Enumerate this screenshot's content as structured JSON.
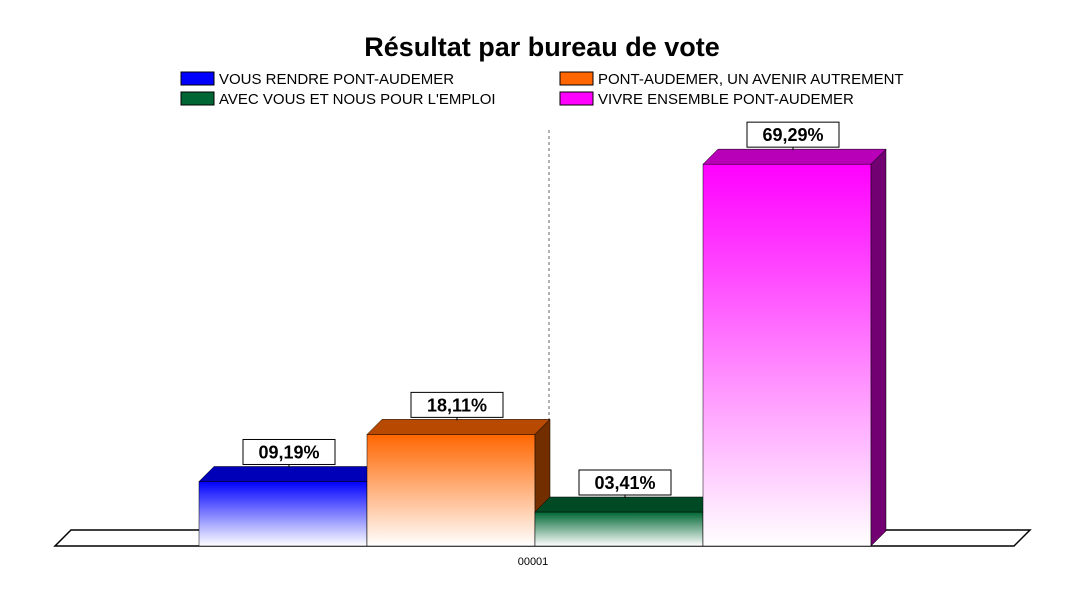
{
  "chart_data": {
    "type": "bar",
    "title": "Résultat par bureau de vote",
    "categories": [
      "00001"
    ],
    "series": [
      {
        "name": "VOUS RENDRE PONT-AUDEMER",
        "values": [
          9.19
        ],
        "label": "09,19%",
        "color": "#0000ff"
      },
      {
        "name": "PONT-AUDEMER, UN AVENIR AUTREMENT",
        "values": [
          18.11
        ],
        "label": "18,11%",
        "color": "#ff6600"
      },
      {
        "name": "AVEC VOUS ET NOUS POUR L'EMPLOI",
        "values": [
          3.41
        ],
        "label": "03,41%",
        "color": "#006633"
      },
      {
        "name": "VIVRE ENSEMBLE PONT-AUDEMER",
        "values": [
          69.29
        ],
        "label": "69,29%",
        "color": "#ff00ff"
      }
    ],
    "legend_position": "top",
    "grid": false,
    "ylim": [
      0,
      80
    ]
  }
}
